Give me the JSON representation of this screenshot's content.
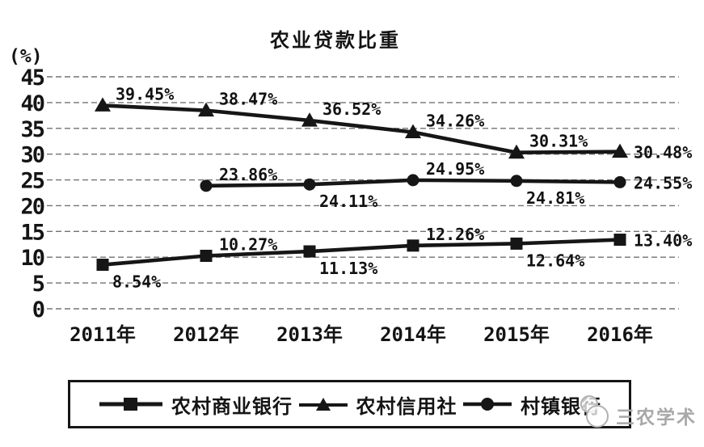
{
  "page": {
    "background": "#ffffff",
    "watermark": {
      "text": "三农学术"
    }
  },
  "chart_data": {
    "type": "line",
    "title": "农业贷款比重",
    "ylabel": "(%)",
    "xlabel": "",
    "categories": [
      "2011年",
      "2012年",
      "2013年",
      "2014年",
      "2015年",
      "2016年"
    ],
    "ylim": [
      0,
      45
    ],
    "yticks": [
      0,
      5,
      10,
      15,
      20,
      25,
      30,
      35,
      40,
      45
    ],
    "grid": true,
    "grid_style": "dashed",
    "legend_position": "bottom",
    "line_color": "#161616",
    "series": [
      {
        "name": "农村商业银行",
        "marker": "square",
        "start_index": 0,
        "values": [
          8.54,
          10.27,
          11.13,
          12.26,
          12.64,
          13.4
        ],
        "point_labels": [
          "8.54%",
          "10.27%",
          "11.13%",
          "12.26%",
          "12.64%",
          "13.40%"
        ],
        "label_placement": [
          "below",
          "above",
          "below",
          "above",
          "below",
          "right"
        ]
      },
      {
        "name": "农村信用社",
        "marker": "triangle",
        "start_index": 0,
        "values": [
          39.45,
          38.47,
          36.52,
          34.26,
          30.31,
          30.48
        ],
        "point_labels": [
          "39.45%",
          "38.47%",
          "36.52%",
          "34.26%",
          "30.31%",
          "30.48%"
        ],
        "label_placement": [
          "above",
          "above",
          "above",
          "above",
          "above",
          "right"
        ]
      },
      {
        "name": "村镇银行",
        "marker": "circle",
        "start_index": 1,
        "values": [
          23.86,
          24.11,
          24.95,
          24.81,
          24.55
        ],
        "point_labels": [
          "23.86%",
          "24.11%",
          "24.95%",
          "24.81%",
          "24.55%"
        ],
        "label_placement": [
          "above",
          "below",
          "above",
          "below",
          "right"
        ]
      }
    ]
  }
}
